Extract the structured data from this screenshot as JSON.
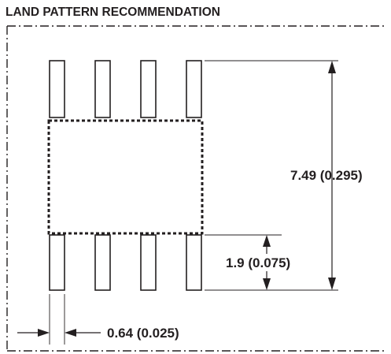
{
  "title": "LAND PATTERN RECOMMENDATION",
  "dimensions": {
    "overall_height": "7.49 (0.295)",
    "pad_length": "1.9 (0.075)",
    "pad_width": "0.64 (0.025)"
  },
  "pads": {
    "top_row_count": 4,
    "bottom_row_count": 4
  },
  "colors": {
    "line": "#231f20",
    "background": "#ffffff"
  }
}
